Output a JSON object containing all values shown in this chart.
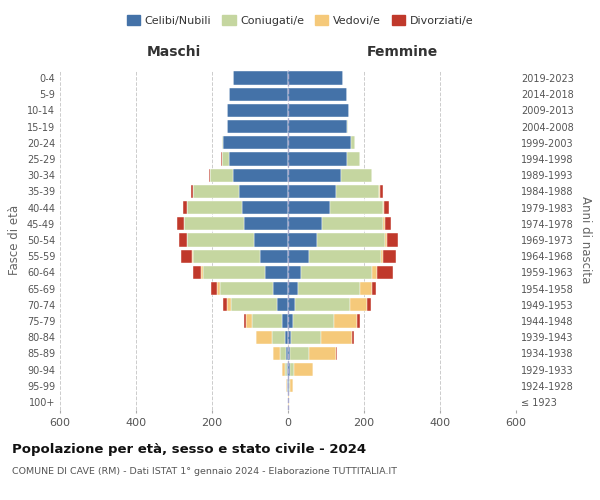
{
  "age_groups": [
    "100+",
    "95-99",
    "90-94",
    "85-89",
    "80-84",
    "75-79",
    "70-74",
    "65-69",
    "60-64",
    "55-59",
    "50-54",
    "45-49",
    "40-44",
    "35-39",
    "30-34",
    "25-29",
    "20-24",
    "15-19",
    "10-14",
    "5-9",
    "0-4"
  ],
  "birth_years": [
    "≤ 1923",
    "1924-1928",
    "1929-1933",
    "1934-1938",
    "1939-1943",
    "1944-1948",
    "1949-1953",
    "1954-1958",
    "1959-1963",
    "1964-1968",
    "1969-1973",
    "1974-1978",
    "1979-1983",
    "1984-1988",
    "1989-1993",
    "1994-1998",
    "1999-2003",
    "2004-2008",
    "2009-2013",
    "2014-2018",
    "2019-2023"
  ],
  "colors": {
    "celibi": "#4472a8",
    "coniugati": "#c5d6a0",
    "vedovi": "#f5c97a",
    "divorziati": "#c0392b"
  },
  "males": {
    "celibi": [
      1,
      2,
      3,
      5,
      8,
      15,
      30,
      40,
      60,
      75,
      90,
      115,
      120,
      130,
      145,
      155,
      170,
      160,
      160,
      155,
      145
    ],
    "coniugati": [
      0,
      1,
      4,
      15,
      35,
      80,
      120,
      140,
      165,
      175,
      175,
      160,
      145,
      120,
      60,
      20,
      5,
      1,
      0,
      0,
      0
    ],
    "vedovi": [
      0,
      1,
      8,
      20,
      40,
      15,
      10,
      8,
      4,
      2,
      1,
      0,
      0,
      0,
      0,
      0,
      0,
      0,
      0,
      0,
      0
    ],
    "divorziati": [
      0,
      0,
      0,
      0,
      2,
      5,
      10,
      15,
      20,
      30,
      20,
      18,
      12,
      5,
      2,
      1,
      0,
      0,
      0,
      0,
      0
    ]
  },
  "females": {
    "celibi": [
      1,
      2,
      4,
      6,
      8,
      12,
      18,
      25,
      35,
      55,
      75,
      90,
      110,
      125,
      140,
      155,
      165,
      155,
      160,
      155,
      145
    ],
    "coniugati": [
      0,
      2,
      12,
      50,
      80,
      110,
      145,
      165,
      185,
      190,
      180,
      160,
      140,
      115,
      80,
      35,
      10,
      2,
      0,
      0,
      0
    ],
    "vedovi": [
      2,
      10,
      50,
      70,
      80,
      60,
      45,
      30,
      15,
      5,
      5,
      4,
      3,
      1,
      0,
      0,
      0,
      0,
      0,
      0,
      0
    ],
    "divorziati": [
      0,
      0,
      0,
      2,
      5,
      8,
      10,
      12,
      40,
      35,
      30,
      18,
      14,
      8,
      2,
      0,
      0,
      0,
      0,
      0,
      0
    ]
  },
  "title": "Popolazione per età, sesso e stato civile - 2024",
  "subtitle": "COMUNE DI CAVE (RM) - Dati ISTAT 1° gennaio 2024 - Elaborazione TUTTITALIA.IT",
  "xlabel_left": "Maschi",
  "xlabel_right": "Femmine",
  "ylabel_left": "Fasce di età",
  "ylabel_right": "Anni di nascita",
  "xlim": 600,
  "legend_labels": [
    "Celibi/Nubili",
    "Coniugati/e",
    "Vedovi/e",
    "Divorziati/e"
  ],
  "bg_color": "#ffffff",
  "grid_color": "#cccccc"
}
